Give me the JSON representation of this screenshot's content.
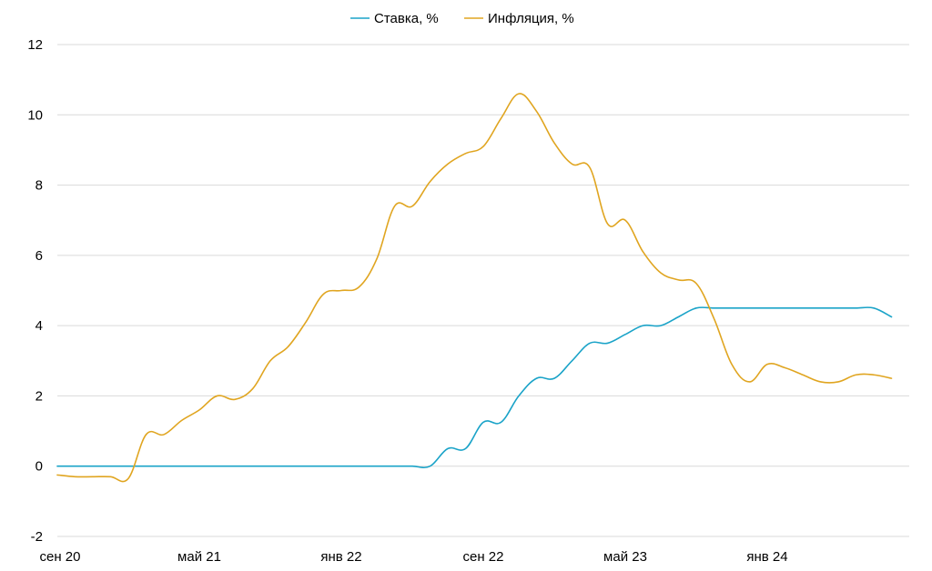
{
  "chart_data": {
    "type": "line",
    "title": "",
    "xlabel": "",
    "ylabel": "",
    "xlim": [
      "2020-09",
      "2024-09"
    ],
    "ylim": [
      -2,
      12
    ],
    "y_ticks": [
      -2,
      0,
      2,
      4,
      6,
      8,
      10,
      12
    ],
    "x_ticks": [
      {
        "date": "2020-09",
        "label": "сен 20"
      },
      {
        "date": "2021-05",
        "label": "май 21"
      },
      {
        "date": "2022-01",
        "label": "янв 22"
      },
      {
        "date": "2022-09",
        "label": "сен 22"
      },
      {
        "date": "2023-05",
        "label": "май 23"
      },
      {
        "date": "2024-01",
        "label": "янв 24"
      }
    ],
    "grid": "horizontal",
    "legend": "top-center",
    "series": [
      {
        "name": "Ставка, %",
        "color": "#1aa3c8",
        "points": [
          [
            "2020-09",
            0
          ],
          [
            "2020-10",
            0
          ],
          [
            "2020-11",
            0
          ],
          [
            "2020-12",
            0
          ],
          [
            "2021-01",
            0
          ],
          [
            "2021-02",
            0
          ],
          [
            "2021-03",
            0
          ],
          [
            "2021-04",
            0
          ],
          [
            "2021-05",
            0
          ],
          [
            "2021-06",
            0
          ],
          [
            "2021-07",
            0
          ],
          [
            "2021-08",
            0
          ],
          [
            "2021-09",
            0
          ],
          [
            "2021-10",
            0
          ],
          [
            "2021-11",
            0
          ],
          [
            "2021-12",
            0
          ],
          [
            "2022-01",
            0
          ],
          [
            "2022-02",
            0
          ],
          [
            "2022-03",
            0
          ],
          [
            "2022-04",
            0
          ],
          [
            "2022-05",
            0
          ],
          [
            "2022-06",
            0
          ],
          [
            "2022-07",
            0.5
          ],
          [
            "2022-08",
            0.5
          ],
          [
            "2022-09",
            1.25
          ],
          [
            "2022-10",
            1.25
          ],
          [
            "2022-11",
            2
          ],
          [
            "2022-12",
            2.5
          ],
          [
            "2023-01",
            2.5
          ],
          [
            "2023-02",
            3
          ],
          [
            "2023-03",
            3.5
          ],
          [
            "2023-04",
            3.5
          ],
          [
            "2023-05",
            3.75
          ],
          [
            "2023-06",
            4
          ],
          [
            "2023-07",
            4
          ],
          [
            "2023-08",
            4.25
          ],
          [
            "2023-09",
            4.5
          ],
          [
            "2023-10",
            4.5
          ],
          [
            "2023-11",
            4.5
          ],
          [
            "2023-12",
            4.5
          ],
          [
            "2024-01",
            4.5
          ],
          [
            "2024-02",
            4.5
          ],
          [
            "2024-03",
            4.5
          ],
          [
            "2024-04",
            4.5
          ],
          [
            "2024-05",
            4.5
          ],
          [
            "2024-06",
            4.5
          ],
          [
            "2024-07",
            4.5
          ],
          [
            "2024-08",
            4.25
          ]
        ]
      },
      {
        "name": "Инфляция, %",
        "color": "#e0a520",
        "points": [
          [
            "2020-09",
            -0.25
          ],
          [
            "2020-10",
            -0.3
          ],
          [
            "2020-11",
            -0.3
          ],
          [
            "2020-12",
            -0.3
          ],
          [
            "2021-01",
            -0.35
          ],
          [
            "2021-02",
            0.9
          ],
          [
            "2021-03",
            0.9
          ],
          [
            "2021-04",
            1.3
          ],
          [
            "2021-05",
            1.6
          ],
          [
            "2021-06",
            2
          ],
          [
            "2021-07",
            1.9
          ],
          [
            "2021-08",
            2.2
          ],
          [
            "2021-09",
            3
          ],
          [
            "2021-10",
            3.4
          ],
          [
            "2021-11",
            4.1
          ],
          [
            "2021-12",
            4.9
          ],
          [
            "2022-01",
            5
          ],
          [
            "2022-02",
            5.1
          ],
          [
            "2022-03",
            5.9
          ],
          [
            "2022-04",
            7.4
          ],
          [
            "2022-05",
            7.4
          ],
          [
            "2022-06",
            8.1
          ],
          [
            "2022-07",
            8.6
          ],
          [
            "2022-08",
            8.9
          ],
          [
            "2022-09",
            9.1
          ],
          [
            "2022-10",
            9.9
          ],
          [
            "2022-11",
            10.6
          ],
          [
            "2022-12",
            10.1
          ],
          [
            "2023-01",
            9.2
          ],
          [
            "2023-02",
            8.6
          ],
          [
            "2023-03",
            8.5
          ],
          [
            "2023-04",
            6.9
          ],
          [
            "2023-05",
            7
          ],
          [
            "2023-06",
            6.1
          ],
          [
            "2023-07",
            5.5
          ],
          [
            "2023-08",
            5.3
          ],
          [
            "2023-09",
            5.2
          ],
          [
            "2023-10",
            4.2
          ],
          [
            "2023-11",
            2.9
          ],
          [
            "2023-12",
            2.4
          ],
          [
            "2024-01",
            2.9
          ],
          [
            "2024-02",
            2.8
          ],
          [
            "2024-03",
            2.6
          ],
          [
            "2024-04",
            2.4
          ],
          [
            "2024-05",
            2.4
          ],
          [
            "2024-06",
            2.6
          ],
          [
            "2024-07",
            2.6
          ],
          [
            "2024-08",
            2.5
          ]
        ]
      }
    ]
  }
}
